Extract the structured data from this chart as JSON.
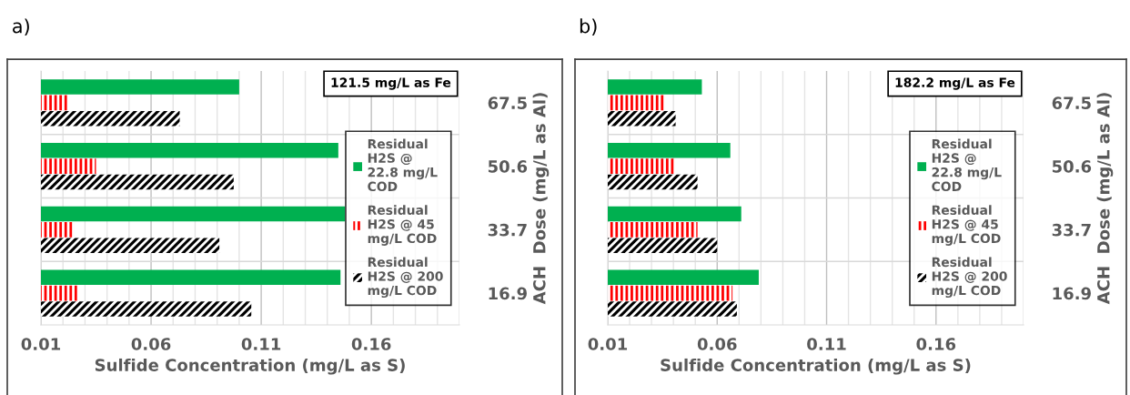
{
  "chart_data": [
    {
      "type": "bar",
      "orientation": "horizontal",
      "title": "a)",
      "xlabel": "Sulfide Concentration (mg/L as S)",
      "ylabel": "ACH  Dose (mg/L as Al)",
      "annotations": [
        "121.5 mg/L as Fe"
      ],
      "categories": [
        "67.5",
        "50.6",
        "33.7",
        "16.9"
      ],
      "series": [
        {
          "name": "Residual H2S @ 22.8 mg/L COD",
          "color": "#00b050",
          "values": [
            0.1,
            0.145,
            0.148,
            0.146
          ]
        },
        {
          "name": "Residual H2S @ 45 mg/L COD",
          "color": "#ff0000",
          "values": [
            0.0225,
            0.035,
            0.025,
            0.0265
          ]
        },
        {
          "name": "Residual H2S @ 200 mg/L COD",
          "color": "#000000",
          "values": [
            0.073,
            0.0975,
            0.091,
            0.1055
          ]
        }
      ],
      "xlim": [
        0.01,
        0.2
      ],
      "xticks": [
        0.01,
        {
          "value": 0.02,
          "label": null
        },
        {
          "value": 0.03,
          "label": null
        },
        {
          "value": 0.04,
          "label": null
        },
        {
          "value": 0.05,
          "label": null
        },
        0.06,
        {
          "value": 0.07,
          "label": null
        },
        {
          "value": 0.08,
          "label": null
        },
        {
          "value": 0.09,
          "label": null
        },
        {
          "value": 0.1,
          "label": null
        },
        0.11,
        {
          "value": 0.12,
          "label": null
        },
        {
          "value": 0.13,
          "label": null
        },
        {
          "value": 0.14,
          "label": null
        },
        {
          "value": 0.15,
          "label": null
        },
        0.16,
        {
          "value": 0.17,
          "label": null
        },
        {
          "value": 0.18,
          "label": null
        },
        {
          "value": 0.19,
          "label": null
        },
        {
          "value": 0.2,
          "label": null
        }
      ],
      "grid": true,
      "legend": "right"
    },
    {
      "type": "bar",
      "orientation": "horizontal",
      "title": "b)",
      "xlabel": "Sulfide Concentration (mg/L as S)",
      "ylabel": "ACH  Dose (mg/L as Al)",
      "annotations": [
        "182.2 mg/L as Fe"
      ],
      "categories": [
        "67.5",
        "50.6",
        "33.7",
        "16.9"
      ],
      "series": [
        {
          "name": "Residual H2S @ 22.8 mg/L COD",
          "color": "#00b050",
          "values": [
            0.053,
            0.066,
            0.071,
            0.079
          ]
        },
        {
          "name": "Residual H2S @ 45 mg/L COD",
          "color": "#ff0000",
          "values": [
            0.036,
            0.041,
            0.051,
            0.067
          ]
        },
        {
          "name": "Residual H2S @ 200 mg/L COD",
          "color": "#000000",
          "values": [
            0.041,
            0.051,
            0.06,
            0.069
          ]
        }
      ],
      "xlim": [
        0.01,
        0.2
      ],
      "xticks": [
        0.01,
        {
          "value": 0.02,
          "label": null
        },
        {
          "value": 0.03,
          "label": null
        },
        {
          "value": 0.04,
          "label": null
        },
        {
          "value": 0.05,
          "label": null
        },
        0.06,
        {
          "value": 0.07,
          "label": null
        },
        {
          "value": 0.08,
          "label": null
        },
        {
          "value": 0.09,
          "label": null
        },
        {
          "value": 0.1,
          "label": null
        },
        0.11,
        {
          "value": 0.12,
          "label": null
        },
        {
          "value": 0.13,
          "label": null
        },
        {
          "value": 0.14,
          "label": null
        },
        {
          "value": 0.15,
          "label": null
        },
        0.16,
        {
          "value": 0.17,
          "label": null
        },
        {
          "value": 0.18,
          "label": null
        },
        {
          "value": 0.19,
          "label": null
        },
        {
          "value": 0.2,
          "label": null
        }
      ],
      "grid": true,
      "legend": "right"
    }
  ]
}
